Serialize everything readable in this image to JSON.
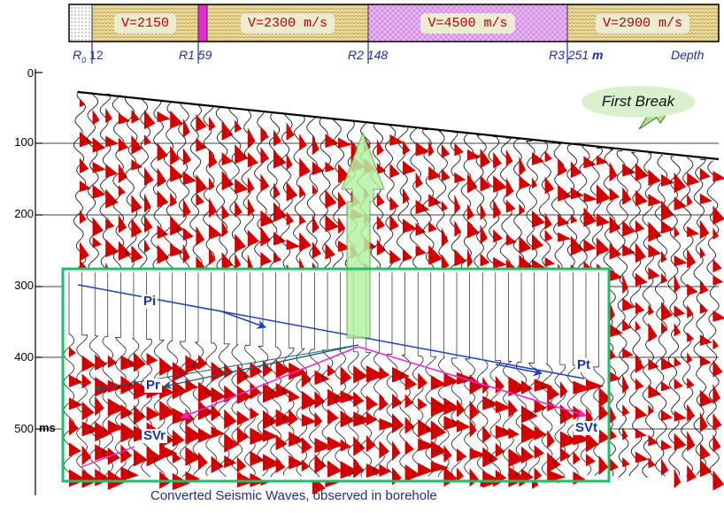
{
  "layers": [
    {
      "label": "",
      "fill": "#ffffff"
    },
    {
      "label": "V=2150",
      "fill": "#e8dca0"
    },
    {
      "label": "",
      "fill": "#d88ee8"
    },
    {
      "label": "V=2300 m/s",
      "fill": "#e8dca0"
    },
    {
      "label": "V=4500 m/s",
      "fill": "#e7b6f2"
    },
    {
      "label": "V=2900 m/s",
      "fill": "#e8dca0"
    }
  ],
  "receivers": [
    {
      "name": "R",
      "sub": "0",
      "value": "12"
    },
    {
      "name": "R1",
      "value": "59"
    },
    {
      "name": "R2",
      "value": "148"
    },
    {
      "name": "R3",
      "value": "251"
    }
  ],
  "units": {
    "depth_unit": "m",
    "depth_label": "Depth",
    "time_unit": "ms"
  },
  "time_ticks": [
    "0",
    "100",
    "200",
    "300",
    "400",
    "500"
  ],
  "labels": {
    "first_break": "First Break",
    "pi": "Pi",
    "pt": "Pt",
    "pr": "Pr",
    "svr": "SVr",
    "svt": "SVt",
    "caption": "Converted Seismic Waves, observed in borehole"
  },
  "colors": {
    "wiggle_fill": "#d40000",
    "inset_border": "#1fbf6a",
    "incident_ray": "#1f3fbf",
    "converted_ray": "#e62bd6",
    "reflected_p_ray": "#1b5b78",
    "arrow_fill": "#b5f2a3",
    "label_blue": "#1a33a8"
  }
}
